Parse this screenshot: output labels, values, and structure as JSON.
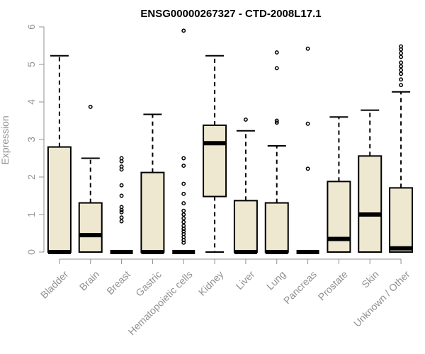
{
  "chart_data": {
    "type": "boxplot",
    "title": "ENSG00000267327 - CTD-2008L17.1",
    "xlabel": "",
    "ylabel": "Expression",
    "ylim": [
      0,
      6
    ],
    "yticks": [
      0,
      1,
      2,
      3,
      4,
      5,
      6
    ],
    "grid": false,
    "colors": {
      "box_fill": "#EEE8D0",
      "stroke": "#000000",
      "axis": "#909090"
    },
    "categories": [
      "Bladder",
      "Brain",
      "Breast",
      "Gastric",
      "Hematopoietic cells",
      "Kidney",
      "Liver",
      "Lung",
      "Pancreas",
      "Prostate",
      "Skin",
      "Unknown / Other"
    ],
    "boxes": [
      {
        "q1": 0,
        "median": 0,
        "q3": 2.8,
        "whisker_low": 0,
        "whisker_high": 5.23,
        "outliers": []
      },
      {
        "q1": 0,
        "median": 0.45,
        "q3": 1.31,
        "whisker_low": 0,
        "whisker_high": 2.5,
        "outliers": [
          3.87
        ]
      },
      {
        "q1": 0,
        "median": 0,
        "q3": 0,
        "whisker_low": 0,
        "whisker_high": 0,
        "outliers": [
          0.82,
          0.92,
          1.06,
          1.12,
          1.2,
          1.5,
          1.78,
          2.2,
          2.28,
          2.42,
          2.5
        ]
      },
      {
        "q1": 0,
        "median": 0,
        "q3": 2.12,
        "whisker_low": 0,
        "whisker_high": 3.67,
        "outliers": []
      },
      {
        "q1": 0,
        "median": 0,
        "q3": 0,
        "whisker_low": 0,
        "whisker_high": 0,
        "outliers": [
          0.25,
          0.32,
          0.4,
          0.48,
          0.55,
          0.62,
          0.7,
          0.8,
          0.9,
          1.0,
          1.1,
          1.3,
          1.55,
          1.82,
          2.3,
          2.5,
          5.9
        ]
      },
      {
        "q1": 1.48,
        "median": 2.9,
        "q3": 3.38,
        "whisker_low": 0,
        "whisker_high": 5.23,
        "outliers": []
      },
      {
        "q1": 0,
        "median": 0,
        "q3": 1.37,
        "whisker_low": 0,
        "whisker_high": 3.23,
        "outliers": [
          3.53
        ]
      },
      {
        "q1": 0,
        "median": 0,
        "q3": 1.31,
        "whisker_low": 0,
        "whisker_high": 2.83,
        "outliers": [
          3.45,
          3.5,
          4.9,
          5.32
        ]
      },
      {
        "q1": 0,
        "median": 0,
        "q3": 0,
        "whisker_low": 0,
        "whisker_high": 0,
        "outliers": [
          2.22,
          3.42,
          5.42
        ]
      },
      {
        "q1": 0,
        "median": 0.35,
        "q3": 1.88,
        "whisker_low": 0,
        "whisker_high": 3.6,
        "outliers": []
      },
      {
        "q1": 0,
        "median": 1.0,
        "q3": 2.56,
        "whisker_low": 0,
        "whisker_high": 3.78,
        "outliers": []
      },
      {
        "q1": 0,
        "median": 0.1,
        "q3": 1.71,
        "whisker_low": 0,
        "whisker_high": 4.27,
        "outliers": [
          4.45,
          4.6,
          4.75,
          4.85,
          4.95,
          5.05,
          5.2,
          5.3,
          5.4,
          5.48
        ]
      }
    ]
  }
}
